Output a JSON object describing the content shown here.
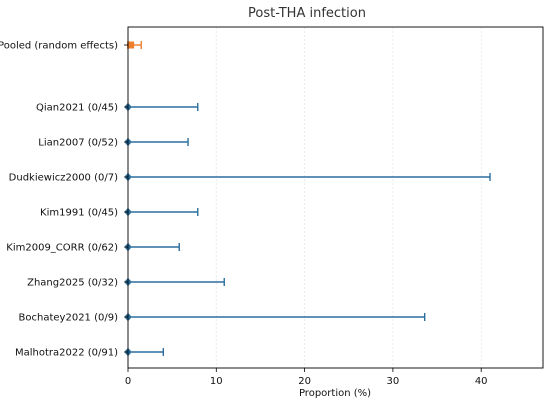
{
  "chart_data": {
    "type": "forest",
    "title": "Post-THA infection",
    "xlabel": "Proportion (%)",
    "ylabel": "",
    "xlim": [
      0,
      47
    ],
    "xticks": [
      0,
      10,
      20,
      30,
      40
    ],
    "grid": "vertical",
    "colors": {
      "study": "#2a6f9e",
      "pooled": "#ee7f2d"
    },
    "pooled": {
      "label": "Pooled (random effects)",
      "estimate": 0.3,
      "lower": 0,
      "upper": 1.5
    },
    "studies": [
      {
        "label": "Qian2021 (0/45)",
        "estimate": 0,
        "lower": 0,
        "upper": 7.9
      },
      {
        "label": "Lian2007 (0/52)",
        "estimate": 0,
        "lower": 0,
        "upper": 6.8
      },
      {
        "label": "Dudkiewicz2000 (0/7)",
        "estimate": 0,
        "lower": 0,
        "upper": 41.0
      },
      {
        "label": "Kim1991 (0/45)",
        "estimate": 0,
        "lower": 0,
        "upper": 7.9
      },
      {
        "label": "Kim2009_CORR (0/62)",
        "estimate": 0,
        "lower": 0,
        "upper": 5.8
      },
      {
        "label": "Zhang2025 (0/32)",
        "estimate": 0,
        "lower": 0,
        "upper": 10.9
      },
      {
        "label": "Bochatey2021 (0/9)",
        "estimate": 0,
        "lower": 0,
        "upper": 33.6
      },
      {
        "label": "Malhotra2022 (0/91)",
        "estimate": 0,
        "lower": 0,
        "upper": 4.0
      }
    ]
  }
}
